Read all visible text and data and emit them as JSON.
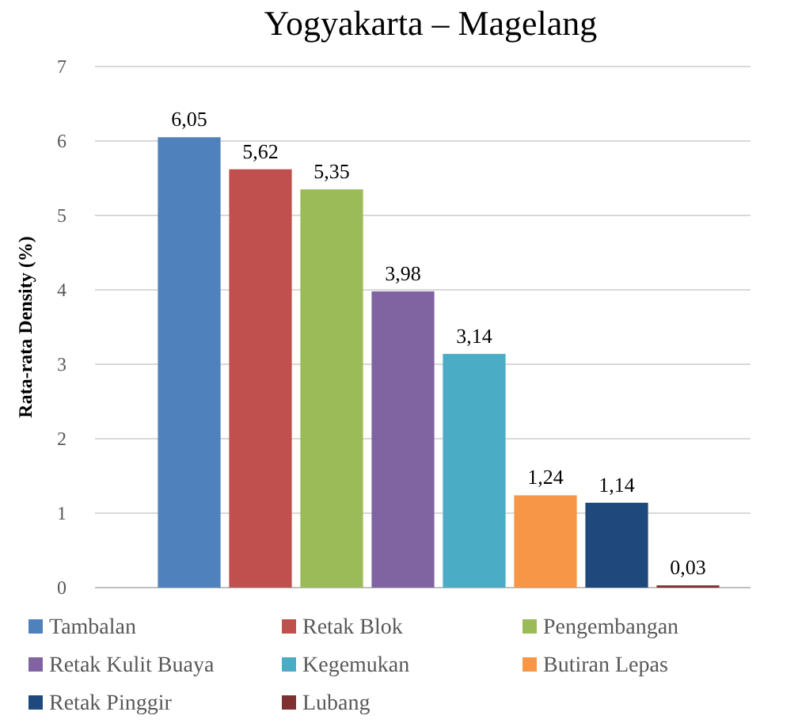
{
  "chart_data": {
    "type": "bar",
    "title": "Yogyakarta – Magelang",
    "ylabel": "Rata-rata Density (%)",
    "categories": [
      null
    ],
    "series": [
      {
        "name": "Tambalan",
        "color": "#4f81bd",
        "values": [
          6.05
        ],
        "value_labels": [
          "6,05"
        ]
      },
      {
        "name": "Retak Blok",
        "color": "#c0504d",
        "values": [
          5.62
        ],
        "value_labels": [
          "5,62"
        ]
      },
      {
        "name": "Pengembangan",
        "color": "#9bbb59",
        "values": [
          5.35
        ],
        "value_labels": [
          "5,35"
        ]
      },
      {
        "name": "Retak Kulit Buaya",
        "color": "#8064a2",
        "values": [
          3.98
        ],
        "value_labels": [
          "3,98"
        ]
      },
      {
        "name": "Kegemukan",
        "color": "#4bacc6",
        "values": [
          3.14
        ],
        "value_labels": [
          "3,14"
        ]
      },
      {
        "name": "Butiran Lepas",
        "color": "#f79646",
        "values": [
          1.24
        ],
        "value_labels": [
          "1,24"
        ]
      },
      {
        "name": "Retak Pinggir",
        "color": "#1f497d",
        "values": [
          1.14
        ],
        "value_labels": [
          "1,14"
        ]
      },
      {
        "name": "Lubang",
        "color": "#7f3030",
        "values": [
          0.03
        ],
        "value_labels": [
          "0,03"
        ]
      }
    ],
    "ylim": [
      0,
      7
    ],
    "yticks": [
      0,
      1,
      2,
      3,
      4,
      5,
      6,
      7
    ],
    "grid": "y",
    "legend": "bottom"
  }
}
